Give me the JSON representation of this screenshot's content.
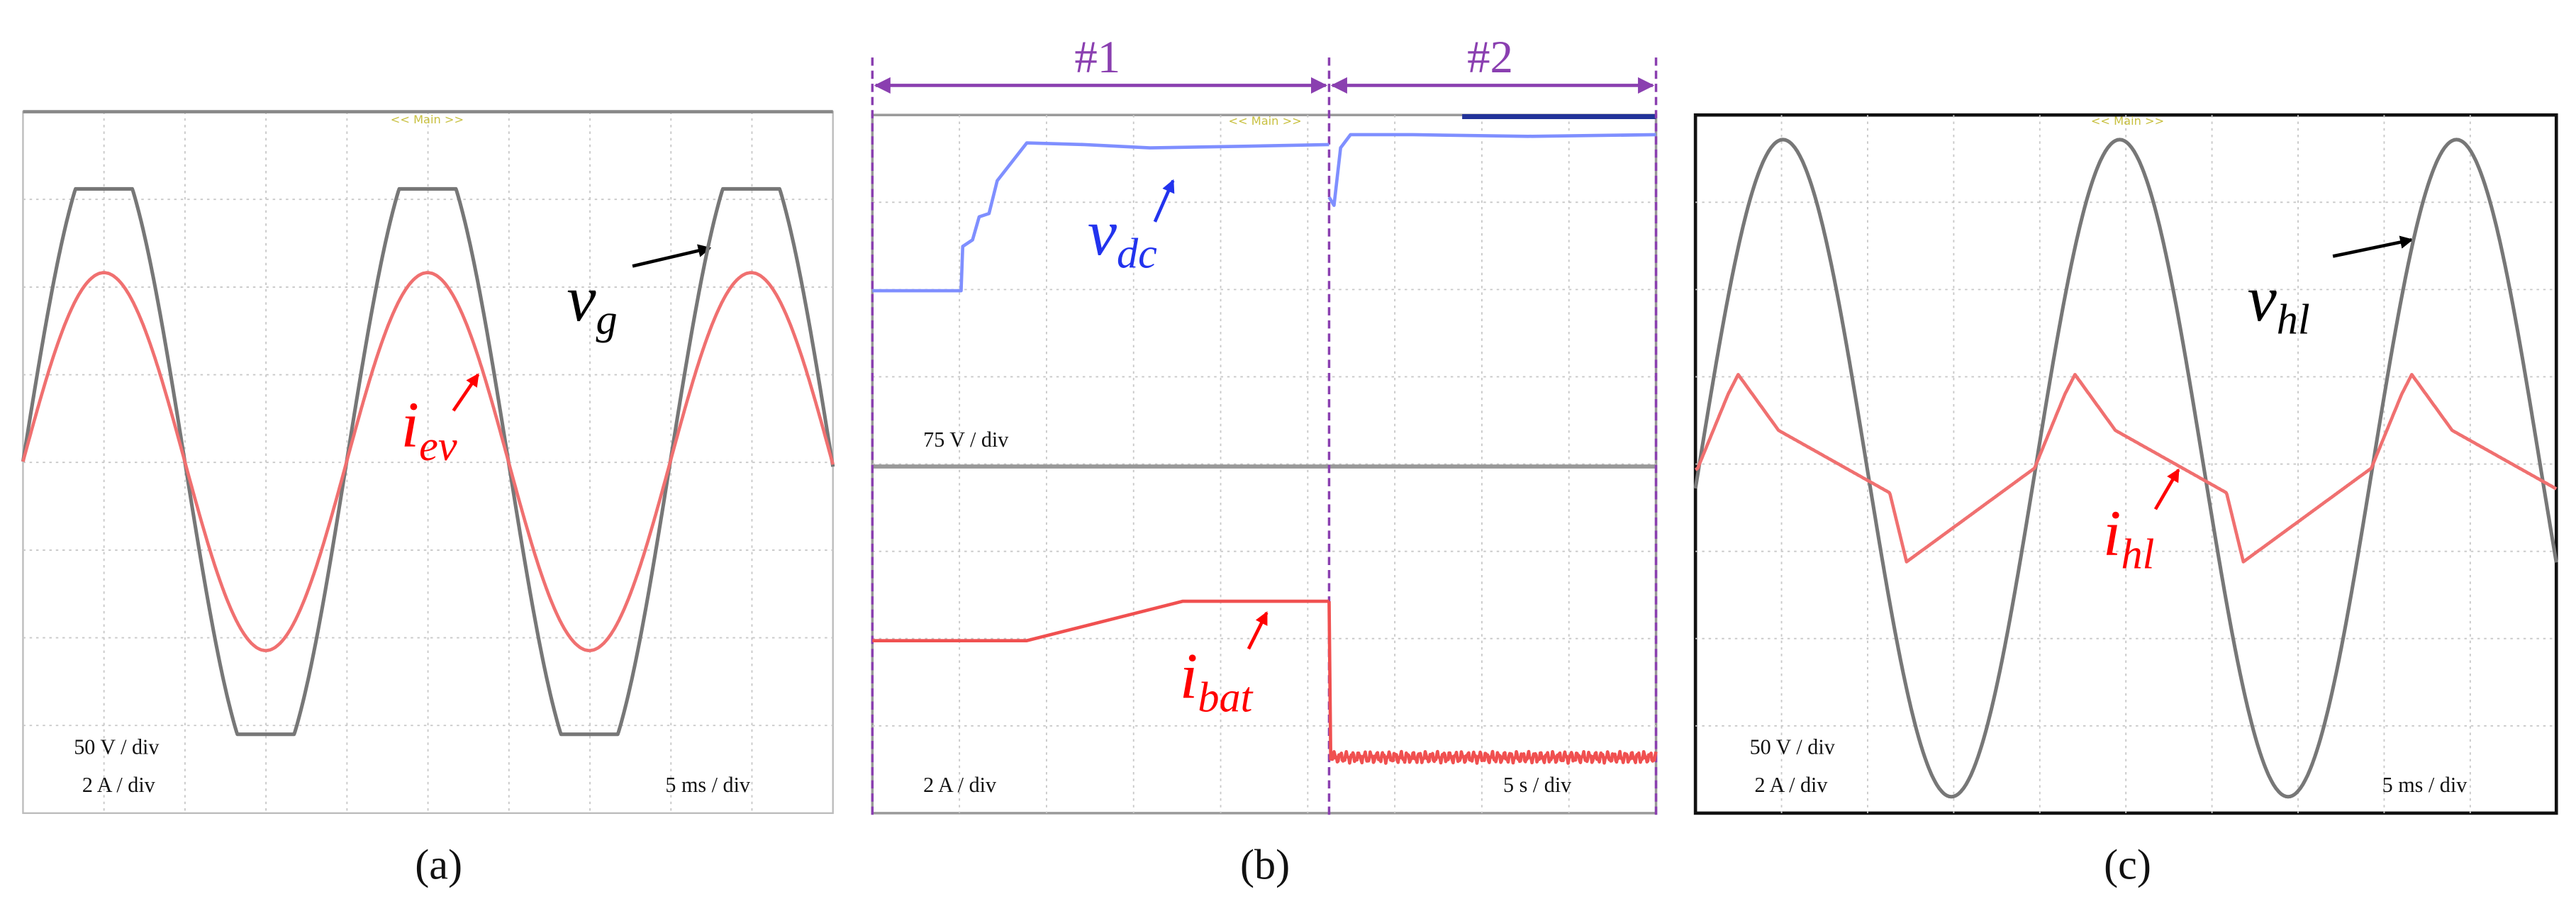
{
  "panels": [
    {
      "label": "(a)",
      "header": "<< Main >>",
      "scales": [
        "50 V / div",
        "2 A / div"
      ],
      "time_scale": "5 ms / div",
      "signals": [
        {
          "symbol": "v",
          "subscript": "g"
        },
        {
          "symbol": "i",
          "subscript": "ev"
        }
      ]
    },
    {
      "label": "(b)",
      "header": "<< Main >>",
      "intervals": [
        "#1",
        "#2"
      ],
      "scales": [
        "75 V / div",
        "2 A / div"
      ],
      "time_scale": "5 s / div",
      "signals": [
        {
          "symbol": "v",
          "subscript": "dc"
        },
        {
          "symbol": "i",
          "subscript": "bat"
        }
      ]
    },
    {
      "label": "(c)",
      "header": "<< Main >>",
      "scales": [
        "50 V / div",
        "2 A / div"
      ],
      "time_scale": "5 ms / div",
      "signals": [
        {
          "symbol": "v",
          "subscript": "hl"
        },
        {
          "symbol": "i",
          "subscript": "hl"
        }
      ]
    }
  ]
}
